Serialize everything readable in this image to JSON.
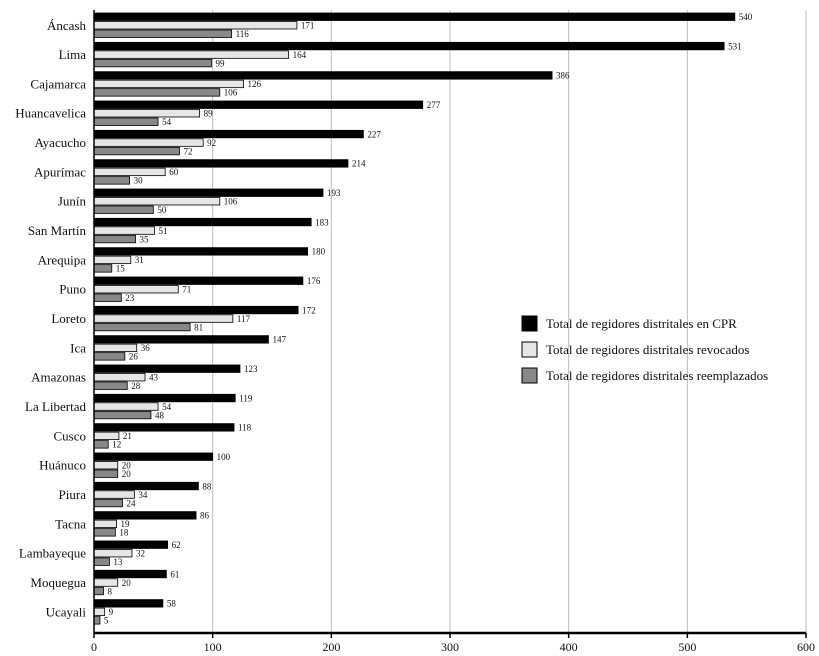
{
  "chart_data": {
    "type": "bar",
    "orientation": "horizontal",
    "categories": [
      "Áncash",
      "Lima",
      "Cajamarca",
      "Huancavelica",
      "Ayacucho",
      "Apurímac",
      "Junín",
      "San Martín",
      "Arequipa",
      "Puno",
      "Loreto",
      "Ica",
      "Amazonas",
      "La Libertad",
      "Cusco",
      "Huánuco",
      "Piura",
      "Tacna",
      "Lambayeque",
      "Moquegua",
      "Ucayali"
    ],
    "series": [
      {
        "name": "Total de regidores distritales en CPR",
        "color": "#000000",
        "values": [
          540,
          531,
          386,
          277,
          227,
          214,
          193,
          183,
          180,
          176,
          172,
          147,
          123,
          119,
          118,
          100,
          88,
          86,
          62,
          61,
          58
        ]
      },
      {
        "name": "Total de regidores distritales revocados",
        "color": "#e6e6e6",
        "values": [
          171,
          164,
          126,
          89,
          92,
          60,
          106,
          51,
          31,
          71,
          117,
          36,
          43,
          54,
          21,
          20,
          34,
          19,
          32,
          20,
          9
        ]
      },
      {
        "name": "Total de regidores distritales reemplazados",
        "color": "#888888",
        "values": [
          116,
          99,
          106,
          54,
          72,
          30,
          50,
          35,
          15,
          23,
          81,
          26,
          28,
          48,
          12,
          20,
          24,
          18,
          13,
          8,
          5
        ]
      }
    ],
    "xlim": [
      0,
      600
    ],
    "x_ticks": [
      "0",
      "100",
      "200",
      "300",
      "400",
      "500",
      "600"
    ],
    "grid": "vertical",
    "legend_position": "right"
  }
}
